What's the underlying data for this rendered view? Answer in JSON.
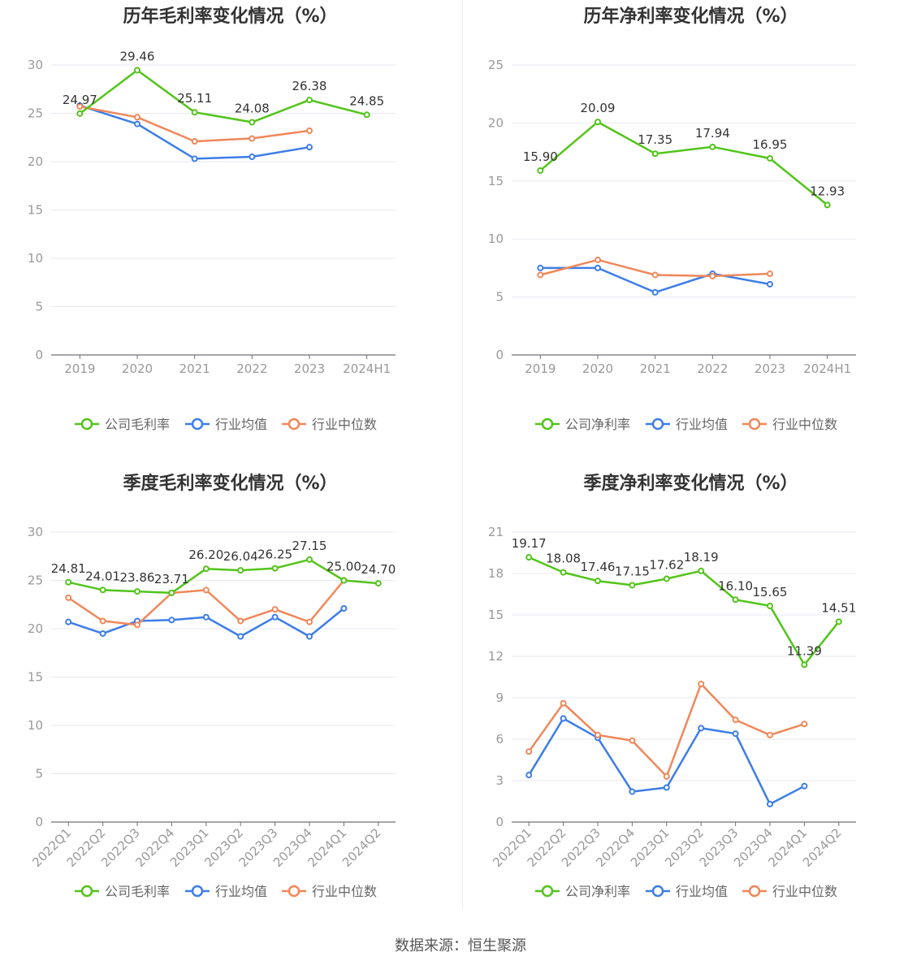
{
  "source": "数据来源：恒生聚源",
  "colors": {
    "company": "#52c41a",
    "avg": "#3d7de8",
    "median": "#f0875a"
  },
  "chart_data": [
    {
      "type": "line",
      "title": "历年毛利率变化情况（%）",
      "categories": [
        "2019",
        "2020",
        "2021",
        "2022",
        "2023",
        "2024H1"
      ],
      "ylim": [
        0,
        30
      ],
      "yticks": [
        "0",
        "5",
        "10",
        "15",
        "20",
        "25",
        "30"
      ],
      "grid": true,
      "legend_position": "bottom",
      "series": [
        {
          "name": "公司毛利率",
          "values": [
            24.97,
            29.46,
            25.11,
            24.08,
            26.38,
            24.85
          ],
          "labels": [
            "24.97",
            "29.46",
            "25.11",
            "24.08",
            "26.38",
            "24.85"
          ]
        },
        {
          "name": "行业均值",
          "values": [
            25.8,
            23.9,
            20.3,
            20.5,
            21.5,
            null
          ]
        },
        {
          "name": "行业中位数",
          "values": [
            25.7,
            24.6,
            22.1,
            22.4,
            23.2,
            null
          ]
        }
      ]
    },
    {
      "type": "line",
      "title": "历年净利率变化情况（%）",
      "categories": [
        "2019",
        "2020",
        "2021",
        "2022",
        "2023",
        "2024H1"
      ],
      "ylim": [
        0,
        25
      ],
      "yticks": [
        "0",
        "5",
        "10",
        "15",
        "20",
        "25"
      ],
      "grid": true,
      "legend_position": "bottom",
      "series": [
        {
          "name": "公司净利率",
          "values": [
            15.9,
            20.09,
            17.35,
            17.94,
            16.95,
            12.93
          ],
          "labels": [
            "15.90",
            "20.09",
            "17.35",
            "17.94",
            "16.95",
            "12.93"
          ]
        },
        {
          "name": "行业均值",
          "values": [
            7.5,
            7.5,
            5.4,
            7.0,
            6.1,
            null
          ]
        },
        {
          "name": "行业中位数",
          "values": [
            6.9,
            8.2,
            6.9,
            6.8,
            7.0,
            null
          ]
        }
      ]
    },
    {
      "type": "line",
      "title": "季度毛利率变化情况（%）",
      "categories": [
        "2022Q1",
        "2022Q2",
        "2022Q3",
        "2022Q4",
        "2023Q1",
        "2023Q2",
        "2023Q3",
        "2023Q4",
        "2024Q1",
        "2024Q2"
      ],
      "ylim": [
        0,
        30
      ],
      "yticks": [
        "0",
        "5",
        "10",
        "15",
        "20",
        "25",
        "30"
      ],
      "grid": true,
      "legend_position": "bottom",
      "series": [
        {
          "name": "公司毛利率",
          "values": [
            24.81,
            24.01,
            23.86,
            23.71,
            26.2,
            26.04,
            26.25,
            27.15,
            25.0,
            24.7
          ],
          "labels": [
            "24.81",
            "24.01",
            "23.86",
            "23.71",
            "26.20",
            "26.04",
            "26.25",
            "27.15",
            "25.00",
            "24.70"
          ]
        },
        {
          "name": "行业均值",
          "values": [
            20.7,
            19.5,
            20.8,
            20.9,
            21.2,
            19.2,
            21.2,
            19.2,
            22.1,
            null
          ]
        },
        {
          "name": "行业中位数",
          "values": [
            23.2,
            20.8,
            20.4,
            23.7,
            24.0,
            20.8,
            22.0,
            20.7,
            25.0,
            null
          ]
        }
      ]
    },
    {
      "type": "line",
      "title": "季度净利率变化情况（%）",
      "categories": [
        "2022Q1",
        "2022Q2",
        "2022Q3",
        "2022Q4",
        "2023Q1",
        "2023Q2",
        "2023Q3",
        "2023Q4",
        "2024Q1",
        "2024Q2"
      ],
      "ylim": [
        0,
        21
      ],
      "yticks": [
        "0",
        "3",
        "6",
        "9",
        "12",
        "15",
        "18",
        "21"
      ],
      "grid": true,
      "legend_position": "bottom",
      "series": [
        {
          "name": "公司净利率",
          "values": [
            19.17,
            18.08,
            17.46,
            17.15,
            17.62,
            18.19,
            16.1,
            15.65,
            11.39,
            14.51
          ],
          "labels": [
            "19.17",
            "18.08",
            "17.46",
            "17.15",
            "17.62",
            "18.19",
            "16.10",
            "15.65",
            "11.39",
            "14.51"
          ]
        },
        {
          "name": "行业均值",
          "values": [
            3.4,
            7.5,
            6.1,
            2.2,
            2.5,
            6.8,
            6.4,
            1.3,
            2.6,
            null
          ]
        },
        {
          "name": "行业中位数",
          "values": [
            5.1,
            8.6,
            6.3,
            5.9,
            3.3,
            10.0,
            7.4,
            6.3,
            7.1,
            null
          ]
        }
      ]
    }
  ]
}
